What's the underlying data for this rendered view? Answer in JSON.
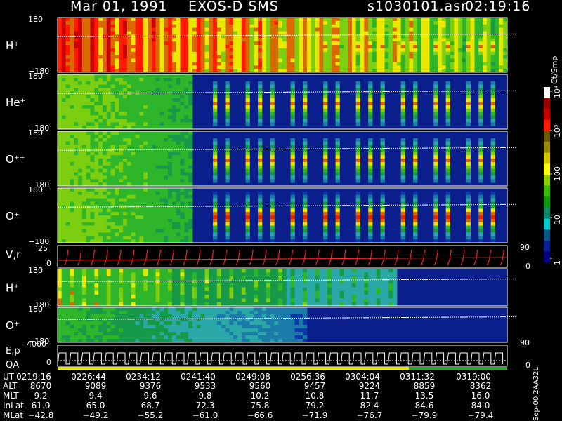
{
  "header": {
    "date": "Mar 01, 1991",
    "mission": "EXOS-D SMS",
    "file": "s1030101.asr",
    "time": "02:19:16"
  },
  "colorbar": {
    "unit": "Ct/Smp",
    "ticks": [
      "10⁴",
      "10³",
      "100",
      "10",
      "1"
    ],
    "colors": [
      "#ffffff",
      "#9a0000",
      "#cc0000",
      "#ff1a00",
      "#6b5a00",
      "#9a8a00",
      "#d8c800",
      "#ffff00",
      "#8fcf00",
      "#3cb800",
      "#0a9a0a",
      "#10886a",
      "#00c8c8",
      "#0a5a8a",
      "#0a2090",
      "#000080"
    ]
  },
  "bottom_stamp": "Sep-00  2AA32L",
  "chart_data": [
    {
      "type": "heatmap",
      "title": "H+",
      "label": "H⁺",
      "ymax": "180",
      "ymin": "−180"
    },
    {
      "type": "heatmap",
      "title": "He+",
      "label": "He⁺",
      "ymax": "180",
      "ymin": "−180"
    },
    {
      "type": "heatmap",
      "title": "O++",
      "label": "O⁺⁺",
      "ymax": "180",
      "ymin": "−180"
    },
    {
      "type": "heatmap",
      "title": "O+",
      "label": "O⁺",
      "ymax": "180",
      "ymin": "−180"
    },
    {
      "type": "line",
      "title": "V,r",
      "label": "V,r",
      "ymax": "25",
      "ymin": "0",
      "right_top": "90",
      "right_bottom": "0"
    },
    {
      "type": "heatmap",
      "title": "H+",
      "label": "H⁺",
      "ymax": "180",
      "ymin": "−180"
    },
    {
      "type": "heatmap",
      "title": "O+",
      "label": "O⁺",
      "ymax": "180",
      "ymin": "−180",
      "right_bottom": "90"
    },
    {
      "type": "line",
      "title": "E,p QA",
      "label": "E,p",
      "label2": "QA",
      "ymax": "4000",
      "ymin": "0",
      "right_bottom": "0"
    }
  ],
  "table": {
    "rows": [
      {
        "name": "UT",
        "values": [
          "0219:16",
          "0226:44",
          "0234:12",
          "0241:40",
          "0249:08",
          "0256:36",
          "0304:04",
          "0311:32",
          "0319:00"
        ]
      },
      {
        "name": "ALT",
        "values": [
          "8670",
          "9089",
          "9376",
          "9533",
          "9560",
          "9457",
          "9224",
          "8859",
          "8362"
        ]
      },
      {
        "name": "MLT",
        "values": [
          "9.2",
          "9.4",
          "9.6",
          "9.8",
          "10.2",
          "10.8",
          "11.7",
          "13.5",
          "16.0"
        ]
      },
      {
        "name": "InLat",
        "values": [
          "61.0",
          "65.0",
          "68.7",
          "72.3",
          "75.8",
          "79.2",
          "82.4",
          "84.6",
          "84.0"
        ]
      },
      {
        "name": "MLat",
        "values": [
          "−42.8",
          "−49.2",
          "−55.2",
          "−61.0",
          "−66.6",
          "−71.9",
          "−76.7",
          "−79.9",
          "−79.4"
        ]
      }
    ]
  }
}
